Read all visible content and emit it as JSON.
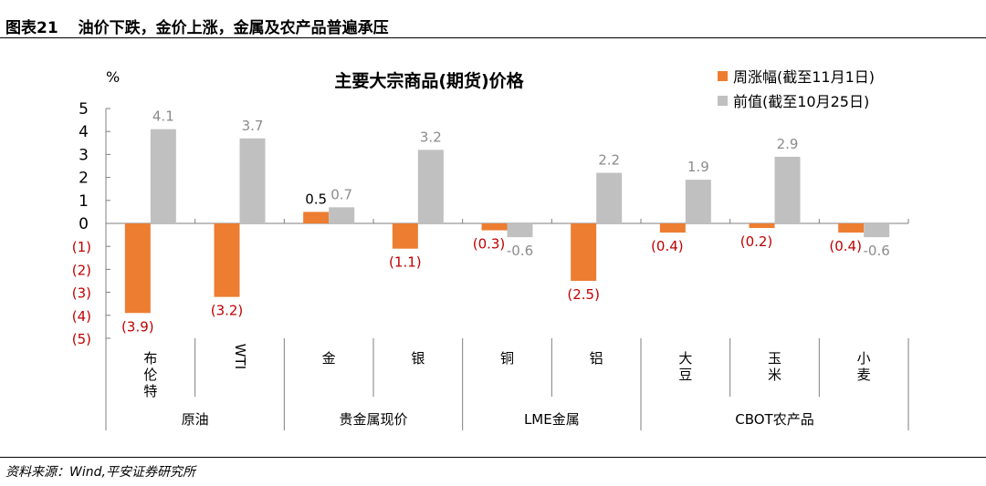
{
  "header": {
    "figure_number": "图表21",
    "title": "油价下跌，金价上涨，金属及农产品普遍承压"
  },
  "source": "资料来源：Wind,平安证券研究所",
  "chart_data": {
    "type": "bar",
    "title": "主要大宗商品(期货)价格",
    "ylabel": "%",
    "ylim": [
      -5,
      5
    ],
    "yticks": [
      {
        "v": 5,
        "label": "5"
      },
      {
        "v": 4,
        "label": "4"
      },
      {
        "v": 3,
        "label": "3"
      },
      {
        "v": 2,
        "label": "2"
      },
      {
        "v": 1,
        "label": "1"
      },
      {
        "v": 0,
        "label": "0"
      },
      {
        "v": -1,
        "label": "(1)"
      },
      {
        "v": -2,
        "label": "(2)"
      },
      {
        "v": -3,
        "label": "(3)"
      },
      {
        "v": -4,
        "label": "(4)"
      },
      {
        "v": -5,
        "label": "(5)"
      }
    ],
    "categories": [
      "布伦特",
      "WTI",
      "金",
      "银",
      "铜",
      "铝",
      "大豆",
      "玉米",
      "小麦"
    ],
    "groups": [
      {
        "label": "原油",
        "count": 2
      },
      {
        "label": "贵金属现价",
        "count": 2
      },
      {
        "label": "LME金属",
        "count": 2
      },
      {
        "label": "CBOT农产品",
        "count": 3
      }
    ],
    "series": [
      {
        "name": "周涨幅(截至11月1日)",
        "color": "#ED7D31",
        "values": [
          -3.9,
          -3.2,
          0.5,
          -1.1,
          -0.3,
          -2.5,
          -0.4,
          -0.2,
          -0.4
        ],
        "labels": [
          "(3.9)",
          "(3.2)",
          "0.5",
          "(1.1)",
          "(0.3)",
          "(2.5)",
          "(0.4)",
          "(0.2)",
          "(0.4)"
        ]
      },
      {
        "name": "前值(截至10月25日)",
        "color": "#C0C0C0",
        "values": [
          4.1,
          3.7,
          0.7,
          3.2,
          -0.6,
          2.2,
          1.9,
          2.9,
          -0.6
        ],
        "labels": [
          "4.1",
          "3.7",
          "0.7",
          "3.2",
          "-0.6",
          "2.2",
          "1.9",
          "2.9",
          "-0.6"
        ]
      }
    ],
    "legend": "top-right",
    "negative_label_color": "#C00000",
    "grid": false
  }
}
